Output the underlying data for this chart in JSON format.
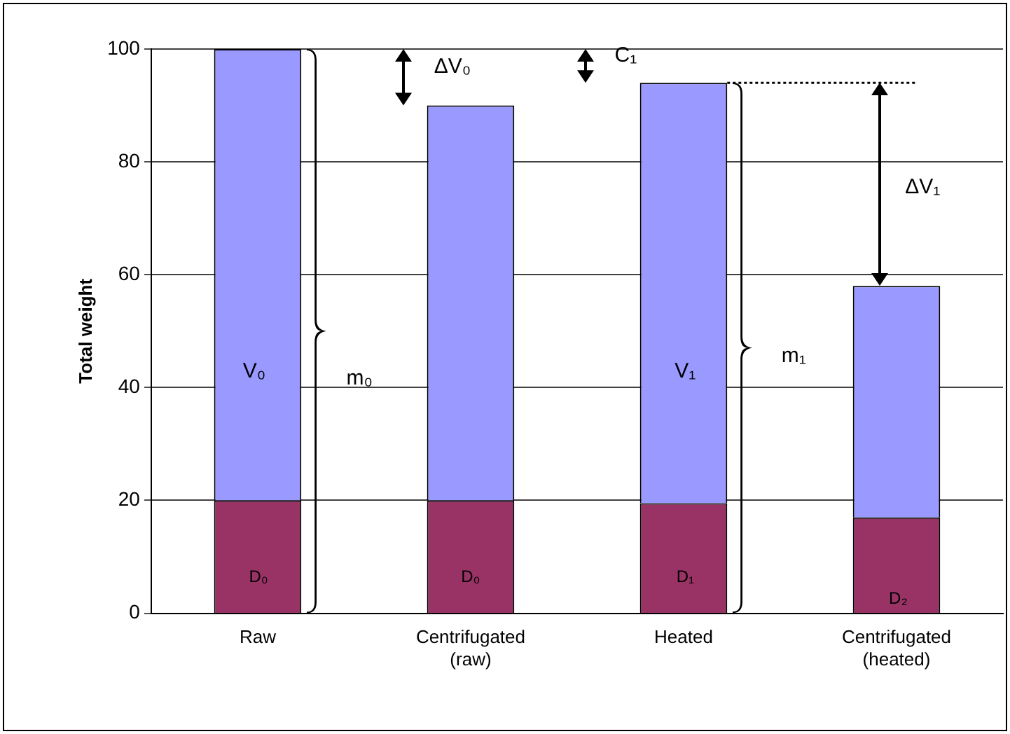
{
  "chart_data": {
    "type": "bar",
    "stacked": true,
    "ylabel": "Total weight",
    "categories": [
      "Raw",
      "Centrifugated (raw)",
      "Heated",
      "Centrifugated (heated)"
    ],
    "series": [
      {
        "color": "#993366",
        "values": [
          20,
          20,
          19.5,
          17
        ]
      },
      {
        "color": "#9999ff",
        "values": [
          80,
          70,
          74.5,
          41
        ]
      }
    ],
    "ylim": [
      0,
      100
    ],
    "yticks": [
      0,
      20,
      40,
      60,
      80,
      100
    ],
    "grid": "y",
    "legend": false,
    "ref_lines": [
      {
        "axis": "y",
        "value": 94,
        "line_style": "dotted"
      }
    ],
    "annotations": [
      "V₀",
      "m₀",
      "ΔV₀",
      "C₁",
      "V₁",
      "m₁",
      "ΔV₁",
      "D₀",
      "D₀",
      "D₁",
      "D₂"
    ]
  }
}
